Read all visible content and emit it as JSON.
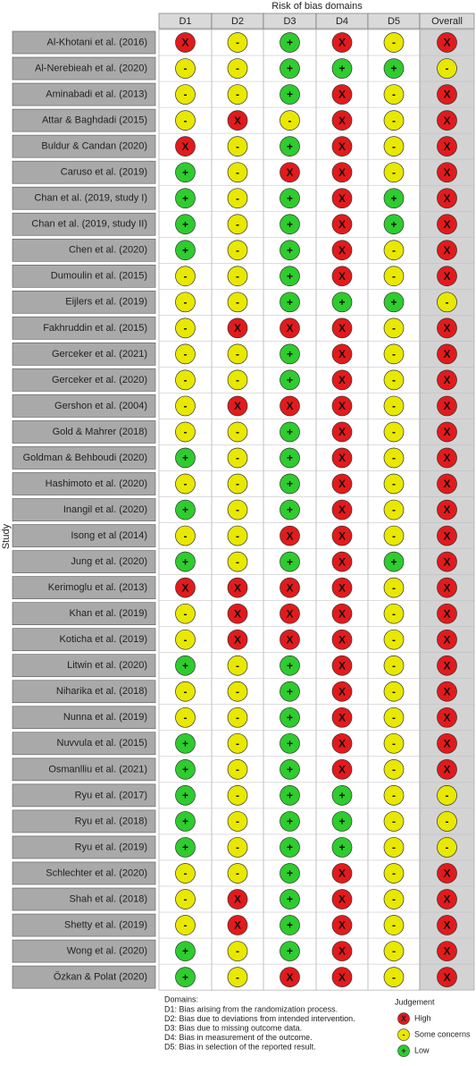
{
  "title": "Risk of bias domains",
  "y_label": "Study",
  "columns": [
    "D1",
    "D2",
    "D3",
    "D4",
    "D5",
    "Overall"
  ],
  "rows": [
    {
      "study": "Al-Khotani et al. (2016)",
      "judgments": [
        "X",
        "-",
        "+",
        "X",
        "-",
        "X"
      ]
    },
    {
      "study": "Al-Nerebieah et al. (2020)",
      "judgments": [
        "-",
        "-",
        "+",
        "+",
        "+",
        "-"
      ]
    },
    {
      "study": "Aminabadi et al. (2013)",
      "judgments": [
        "-",
        "-",
        "+",
        "X",
        "-",
        "X"
      ]
    },
    {
      "study": "Attar & Baghdadi (2015)",
      "judgments": [
        "-",
        "X",
        "-",
        "X",
        "-",
        "X"
      ]
    },
    {
      "study": "Buldur & Candan (2020)",
      "judgments": [
        "X",
        "-",
        "+",
        "X",
        "-",
        "X"
      ]
    },
    {
      "study": "Caruso et al. (2019)",
      "judgments": [
        "+",
        "-",
        "X",
        "X",
        "-",
        "X"
      ]
    },
    {
      "study": "Chan et al. (2019, study I)",
      "judgments": [
        "+",
        "-",
        "+",
        "X",
        "+",
        "X"
      ]
    },
    {
      "study": "Chan et al. (2019, study II)",
      "judgments": [
        "+",
        "-",
        "+",
        "X",
        "+",
        "X"
      ]
    },
    {
      "study": "Chen et al. (2020)",
      "judgments": [
        "+",
        "-",
        "+",
        "X",
        "-",
        "X"
      ]
    },
    {
      "study": "Dumoulin et al. (2015)",
      "judgments": [
        "-",
        "-",
        "+",
        "X",
        "-",
        "X"
      ]
    },
    {
      "study": "Eijlers et al. (2019)",
      "judgments": [
        "-",
        "-",
        "+",
        "+",
        "+",
        "-"
      ]
    },
    {
      "study": "Fakhruddin et al. (2015)",
      "judgments": [
        "-",
        "X",
        "X",
        "X",
        "-",
        "X"
      ]
    },
    {
      "study": "Gerceker et al. (2021)",
      "judgments": [
        "-",
        "-",
        "+",
        "X",
        "-",
        "X"
      ]
    },
    {
      "study": "Gerceker et al. (2020)",
      "judgments": [
        "-",
        "-",
        "+",
        "X",
        "-",
        "X"
      ]
    },
    {
      "study": "Gershon et al. (2004)",
      "judgments": [
        "-",
        "X",
        "X",
        "X",
        "-",
        "X"
      ]
    },
    {
      "study": "Gold & Mahrer (2018)",
      "judgments": [
        "-",
        "-",
        "+",
        "X",
        "-",
        "X"
      ]
    },
    {
      "study": "Goldman & Behboudi (2020)",
      "judgments": [
        "+",
        "-",
        "+",
        "X",
        "-",
        "X"
      ]
    },
    {
      "study": "Hashimoto et al. (2020)",
      "judgments": [
        "-",
        "-",
        "+",
        "X",
        "-",
        "X"
      ]
    },
    {
      "study": "Inangil et al. (2020)",
      "judgments": [
        "+",
        "-",
        "+",
        "X",
        "-",
        "X"
      ]
    },
    {
      "study": "Isong et al (2014)",
      "judgments": [
        "-",
        "-",
        "X",
        "X",
        "-",
        "X"
      ]
    },
    {
      "study": "Jung et al. (2020)",
      "judgments": [
        "+",
        "-",
        "+",
        "X",
        "+",
        "X"
      ]
    },
    {
      "study": "Kerimoglu et al. (2013)",
      "judgments": [
        "X",
        "X",
        "X",
        "X",
        "-",
        "X"
      ]
    },
    {
      "study": "Khan et al. (2019)",
      "judgments": [
        "-",
        "X",
        "X",
        "X",
        "-",
        "X"
      ]
    },
    {
      "study": "Koticha et al. (2019)",
      "judgments": [
        "-",
        "X",
        "X",
        "X",
        "-",
        "X"
      ]
    },
    {
      "study": "Litwin et al. (2020)",
      "judgments": [
        "+",
        "-",
        "+",
        "X",
        "-",
        "X"
      ]
    },
    {
      "study": "Niharika et al. (2018)",
      "judgments": [
        "-",
        "-",
        "+",
        "X",
        "-",
        "X"
      ]
    },
    {
      "study": "Nunna et al. (2019)",
      "judgments": [
        "-",
        "-",
        "+",
        "X",
        "-",
        "X"
      ]
    },
    {
      "study": "Nuvvula et al. (2015)",
      "judgments": [
        "+",
        "-",
        "+",
        "X",
        "-",
        "X"
      ]
    },
    {
      "study": "Osmanlliu et al. (2021)",
      "judgments": [
        "+",
        "-",
        "+",
        "X",
        "-",
        "X"
      ]
    },
    {
      "study": "Ryu et al. (2017)",
      "judgments": [
        "+",
        "-",
        "+",
        "+",
        "-",
        "-"
      ]
    },
    {
      "study": "Ryu et al. (2018)",
      "judgments": [
        "+",
        "-",
        "+",
        "+",
        "-",
        "-"
      ]
    },
    {
      "study": "Ryu et al. (2019)",
      "judgments": [
        "+",
        "-",
        "+",
        "+",
        "-",
        "-"
      ]
    },
    {
      "study": "Schlechter et al. (2020)",
      "judgments": [
        "-",
        "-",
        "+",
        "X",
        "-",
        "X"
      ]
    },
    {
      "study": "Shah et al. (2018)",
      "judgments": [
        "-",
        "X",
        "+",
        "X",
        "-",
        "X"
      ]
    },
    {
      "study": "Shetty et al. (2019)",
      "judgments": [
        "-",
        "X",
        "+",
        "X",
        "-",
        "X"
      ]
    },
    {
      "study": "Wong et al. (2020)",
      "judgments": [
        "+",
        "-",
        "+",
        "X",
        "-",
        "X"
      ]
    },
    {
      "study": "Özkan & Polat (2020)",
      "judgments": [
        "+",
        "-",
        "X",
        "X",
        "-",
        "X"
      ]
    }
  ],
  "domains": {
    "heading": "Domains:",
    "lines": [
      "D1: Bias arising from the randomization process.",
      "D2: Bias due to deviations from intended intervention.",
      "D3: Bias due to missing outcome data.",
      "D4: Bias in measurement of the outcome.",
      "D5: Bias in selection of the reported result."
    ]
  },
  "legend": {
    "heading": "Judgement",
    "items": [
      {
        "symbol": "X",
        "label": "High",
        "color": "#e31a1c"
      },
      {
        "symbol": "-",
        "label": "Some concerns",
        "color": "#e8e800"
      },
      {
        "symbol": "+",
        "label": "Low",
        "color": "#2ecc2e"
      }
    ]
  }
}
